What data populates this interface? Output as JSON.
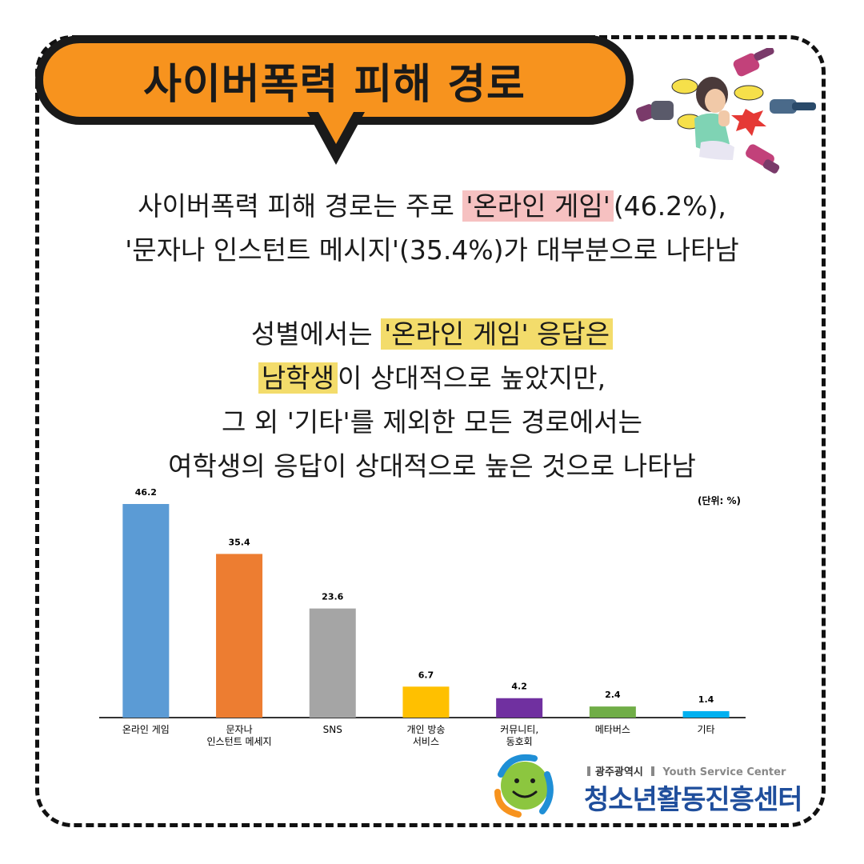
{
  "title": "사이버폭력 피해 경로",
  "summary": {
    "line1_pre": "사이버폭력 피해 경로는 주로 ",
    "line1_hl": "'온라인 게임'",
    "line1_post": "(46.2%),",
    "line2": "'문자나 인스턴트 메시지'(35.4%)가 대부분으로 나타남"
  },
  "detail": {
    "line1_pre": "성별에서는 ",
    "line1_hl": "'온라인 게임' 응답은 ",
    "line2_hl": "남학생",
    "line2_post": "이 상대적으로 높았지만,",
    "line3": "그 외 '기타'를 제외한 모든 경로에서는",
    "line4": "여학생의 응답이 상대적으로 높은 것으로 나타남"
  },
  "colors": {
    "title_bg": "#f7931e",
    "highlight_pink": "#f6c1c1",
    "highlight_yellow": "#f3dc6b",
    "logo_blue": "#1f4e9c"
  },
  "chart_data": {
    "type": "bar",
    "unit_label": "(단위: %)",
    "categories": [
      [
        "온라인 게임"
      ],
      [
        "문자나",
        "인스턴트 메세지"
      ],
      [
        "SNS"
      ],
      [
        "개인 방송",
        "서비스"
      ],
      [
        "커뮤니티,",
        "동호회"
      ],
      [
        "메타버스"
      ],
      [
        "기타"
      ]
    ],
    "values": [
      46.2,
      35.4,
      23.6,
      6.7,
      4.2,
      2.4,
      1.4
    ],
    "value_labels": [
      "46.2",
      "35.4",
      "23.6",
      "6.7",
      "4.2",
      "2.4",
      "1.4"
    ],
    "colors": [
      "#5b9bd5",
      "#ed7d31",
      "#a5a5a5",
      "#ffc000",
      "#7030a0",
      "#70ad47",
      "#00b0f0"
    ],
    "ylim": [
      0,
      50
    ],
    "grid": false,
    "legend": "none"
  },
  "logo": {
    "city": "광주광역시",
    "eng": "Youth Service Center",
    "name": "청소년활동진흥센터"
  },
  "icons": [
    "pointing-fist-icon",
    "crying-girl-icon",
    "speech-bubble-icon"
  ]
}
